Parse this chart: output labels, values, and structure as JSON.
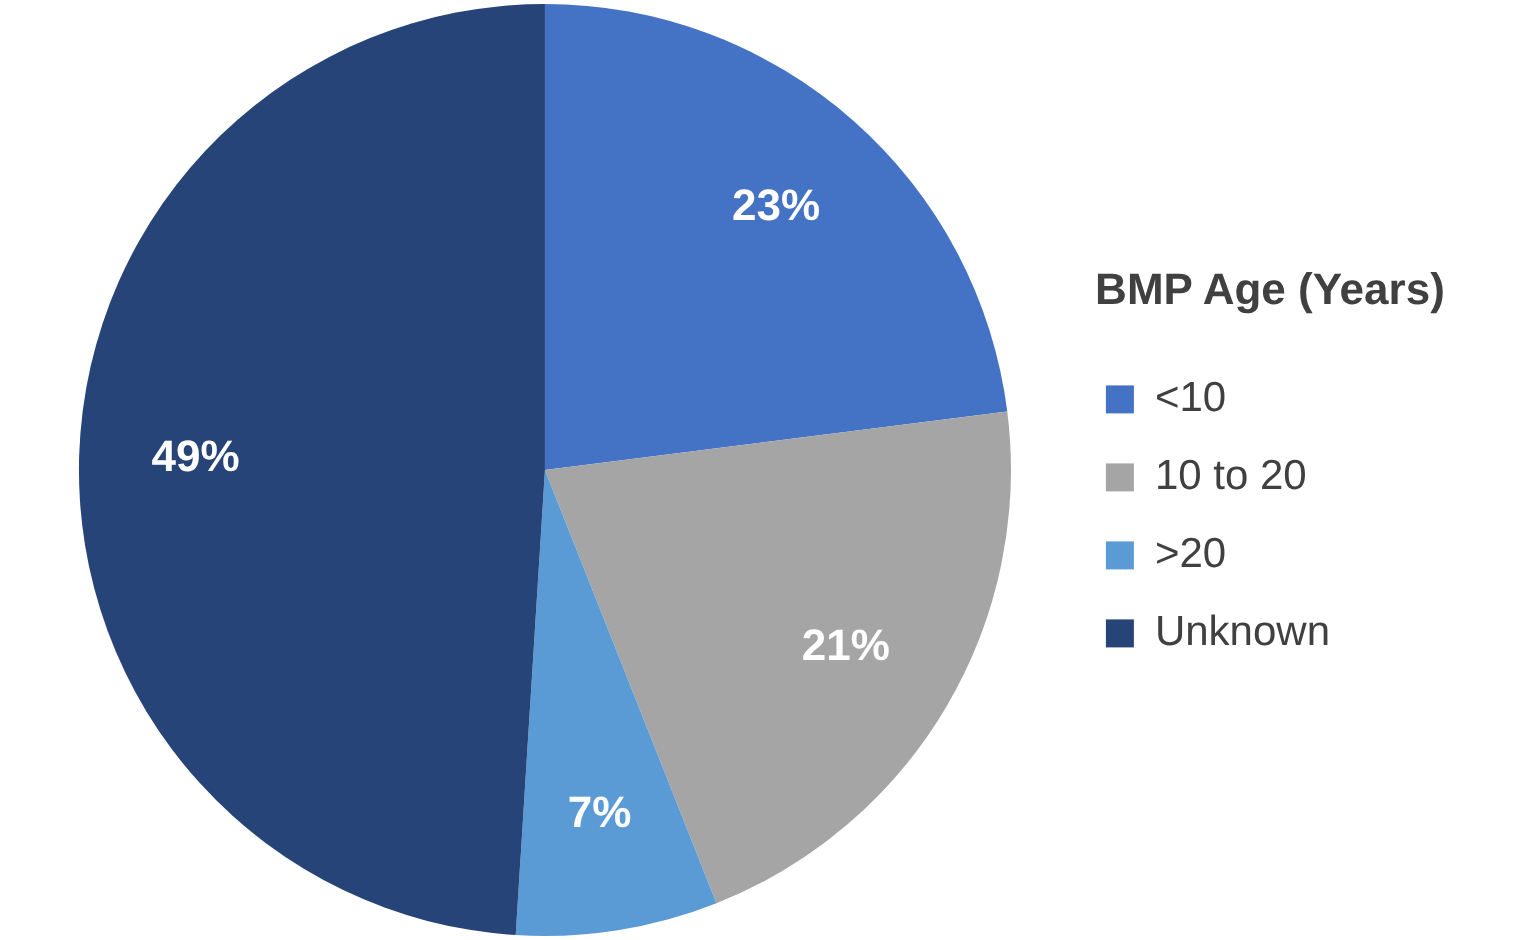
{
  "chart_data": {
    "type": "pie",
    "legend_title": "BMP Age (Years)",
    "categories": [
      "<10",
      "10 to 20",
      ">20",
      "Unknown"
    ],
    "values": [
      23,
      21,
      7,
      49
    ],
    "colors": [
      "#4472c4",
      "#a5a5a5",
      "#5b9bd5",
      "#264478"
    ],
    "value_labels": [
      "23%",
      "21%",
      "7%",
      "49%"
    ],
    "legend": "right"
  }
}
